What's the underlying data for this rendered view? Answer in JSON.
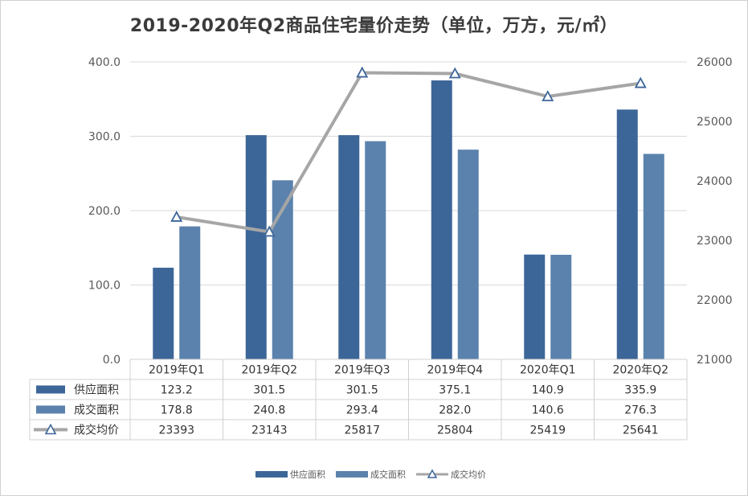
{
  "chart_data": {
    "type": "bar",
    "title": "2019-2020年Q2商品住宅量价走势（单位，万方，元/㎡）",
    "categories": [
      "2019年Q1",
      "2019年Q2",
      "2019年Q3",
      "2019年Q4",
      "2020年Q1",
      "2020年Q2"
    ],
    "series": [
      {
        "name": "供应面积",
        "type": "bar",
        "axis": "left",
        "color": "#3D6698",
        "values": [
          123.2,
          301.5,
          301.5,
          375.1,
          140.9,
          335.9
        ],
        "labels": [
          "123.2",
          "301.5",
          "301.5",
          "375.1",
          "140.9",
          "335.9"
        ]
      },
      {
        "name": "成交面积",
        "type": "bar",
        "axis": "left",
        "color": "#5B82AD",
        "values": [
          178.8,
          240.8,
          293.4,
          282.0,
          140.6,
          276.3
        ],
        "labels": [
          "178.8",
          "240.8",
          "293.4",
          "282.0",
          "140.6",
          "276.3"
        ]
      },
      {
        "name": "成交均价",
        "type": "line",
        "axis": "right",
        "color": "#A6A6A6",
        "marker": "triangle",
        "marker_color": "#3D6698",
        "values": [
          23393,
          23143,
          25817,
          25804,
          25419,
          25641
        ],
        "labels": [
          "23393",
          "23143",
          "25817",
          "25804",
          "25419",
          "25641"
        ]
      }
    ],
    "y_left": {
      "ylim": [
        0,
        400
      ],
      "ticks": [
        "0.0",
        "100.0",
        "200.0",
        "300.0",
        "400.0"
      ]
    },
    "y_right": {
      "ylim": [
        21000,
        26000
      ],
      "ticks": [
        "21000",
        "22000",
        "23000",
        "24000",
        "25000",
        "26000"
      ]
    },
    "grid": true,
    "legend_position": "bottom",
    "data_table": true
  }
}
